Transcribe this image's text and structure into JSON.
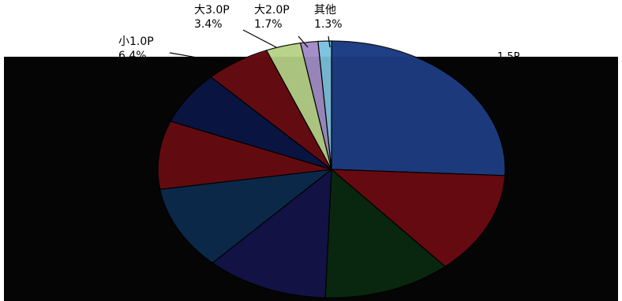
{
  "chart_data": {
    "type": "pie",
    "slices": [
      {
        "label": "",
        "pct": "",
        "value": 27.0,
        "color": "#1f3f86",
        "labelColor": "#000000"
      },
      {
        "label": "",
        "pct": "",
        "value": 13.5,
        "color": "#6e0b12",
        "labelColor": "#000000"
      },
      {
        "label": "",
        "pct": "",
        "value": 12.5,
        "color": "#0a2b10",
        "labelColor": "#000000"
      },
      {
        "label": "",
        "pct": "",
        "value": 12.0,
        "color": "#14154a",
        "labelColor": "#000000"
      },
      {
        "label": "",
        "pct": "",
        "value": 11.0,
        "color": "#0d2c4f",
        "labelColor": "#000000"
      },
      {
        "label": "",
        "pct": "",
        "value": 9.0,
        "color": "#6a0c12",
        "labelColor": "#000000"
      },
      {
        "label": "",
        "pct": "",
        "value": 7.0,
        "color": "#0b1646",
        "labelColor": "#000000"
      },
      {
        "label": "小1.0P",
        "pct": "6.4%",
        "value": 6.4,
        "color": "#6b0e14",
        "labelColor": "#000000"
      },
      {
        "label": "大3.0P",
        "pct": "3.4%",
        "value": 3.4,
        "color": "#b9d48a",
        "labelColor": "#000000"
      },
      {
        "label": "大2.0P",
        "pct": "1.7%",
        "value": 1.7,
        "color": "#a48fc8",
        "labelColor": "#000000"
      },
      {
        "label": "其他",
        "pct": "1.3%",
        "value": 1.3,
        "color": "#7ec3e0",
        "labelColor": "#000000"
      }
    ],
    "visible_labels": [
      {
        "text": "1.5P"
      }
    ]
  }
}
